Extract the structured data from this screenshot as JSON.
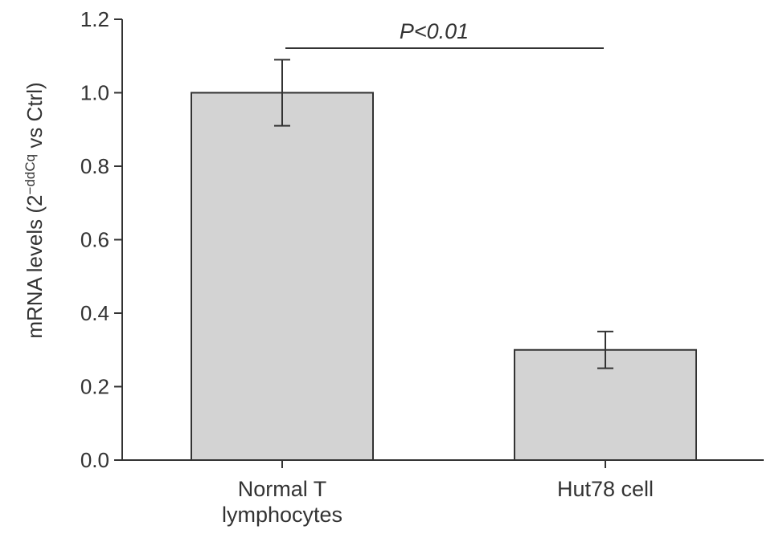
{
  "chart_data": {
    "type": "bar",
    "categories": [
      [
        "Normal T",
        "lymphocytes"
      ],
      [
        "Hut78 cell"
      ]
    ],
    "values": [
      1.0,
      0.3
    ],
    "errors": [
      0.09,
      0.05
    ],
    "ylim": [
      0,
      1.2
    ],
    "yticks": [
      "0.0",
      "0.2",
      "0.4",
      "0.6",
      "0.8",
      "1.0",
      "1.2"
    ],
    "ylabel_main": "mRNA levels (2",
    "ylabel_sup": "−ddCq",
    "ylabel_end": " vs Ctrl)",
    "annotation": "P<0.01",
    "bar_color": "#d3d3d3",
    "line_color": "#333333",
    "grid": false
  }
}
